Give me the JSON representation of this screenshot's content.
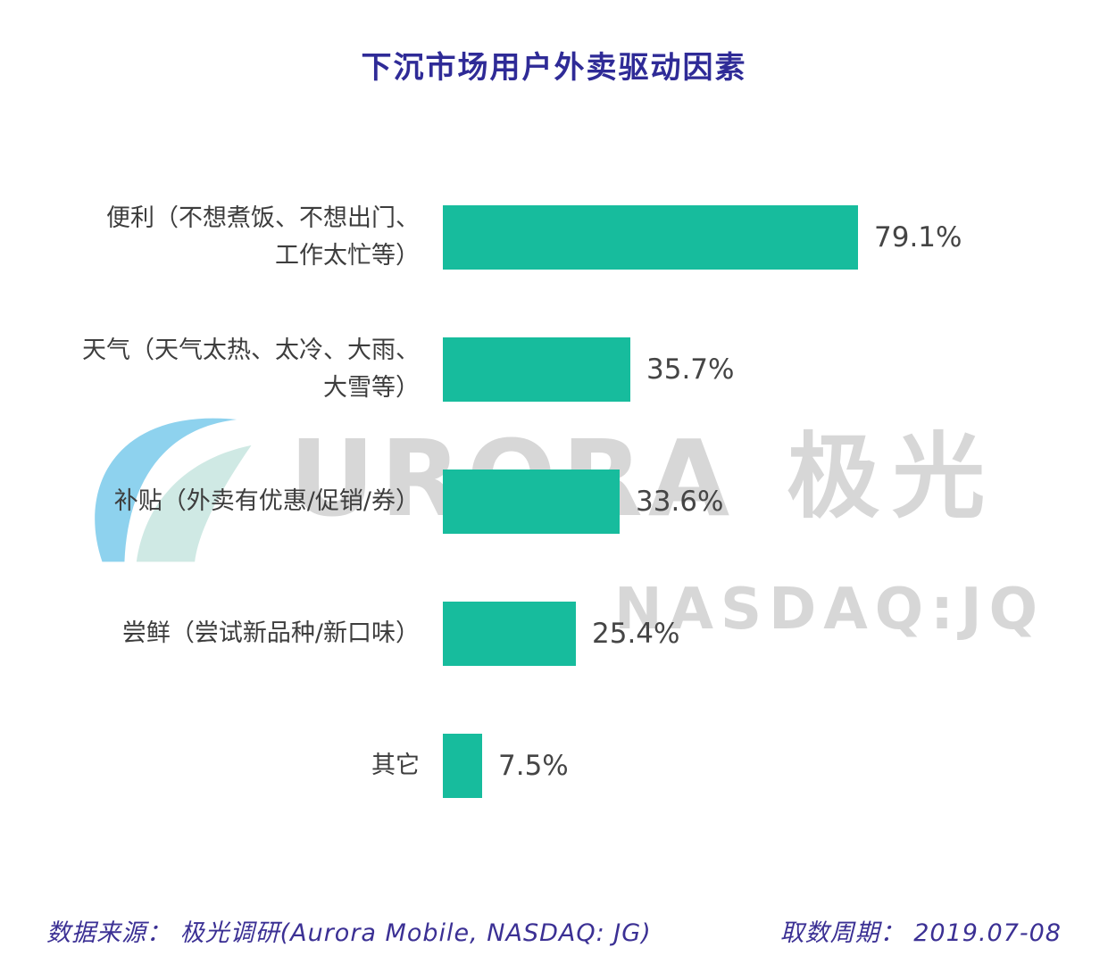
{
  "title": "下沉市场用户外卖驱动因素",
  "chart_data": {
    "type": "bar",
    "orientation": "horizontal",
    "title": "下沉市场用户外卖驱动因素",
    "categories": [
      "便利（不想煮饭、不想出门、\n工作太忙等）",
      "天气（天气太热、太冷、大雨、\n大雪等）",
      "补贴（外卖有优惠/促销/券）",
      "尝鲜（尝试新品种/新口味）",
      "其它"
    ],
    "values": [
      79.1,
      35.7,
      33.6,
      25.4,
      7.5
    ],
    "value_labels": [
      "79.1%",
      "35.7%",
      "33.6%",
      "25.4%",
      "7.5%"
    ],
    "xlim": [
      0,
      100
    ],
    "grid": false,
    "legend": "none",
    "bar_color": "#17bc9d"
  },
  "watermark": {
    "logo_icon": "aurora-swoosh-logo",
    "brand_latin": "URORA",
    "brand_cn": "极光",
    "ticker": "NASDAQ:JQ",
    "color": "#d7d7d7",
    "logo_blue": "#8ed2ee",
    "logo_mint": "#cfe9e4"
  },
  "footer": {
    "source": "数据来源： 极光调研(Aurora Mobile, NASDAQ: JG)",
    "period": "取数周期： 2019.07-08"
  },
  "colors": {
    "title": "#2f2b97",
    "bar": "#17bc9d",
    "footer": "#3b3094",
    "label": "#3d3d3d",
    "value": "#454545"
  }
}
